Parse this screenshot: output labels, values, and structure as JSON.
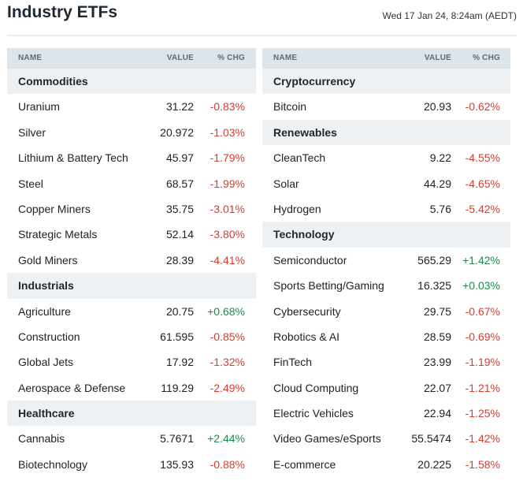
{
  "header": {
    "title": "Industry ETFs",
    "date": "Wed 17 Jan 24, 8:24am (AEDT)"
  },
  "columns": {
    "name": "NAME",
    "value": "VALUE",
    "chg": "% CHG"
  },
  "left": [
    {
      "section": "Commodities"
    },
    {
      "name": "Uranium",
      "value": "31.22",
      "chg": "-0.83%"
    },
    {
      "name": "Silver",
      "value": "20.972",
      "chg": "-1.03%"
    },
    {
      "name": "Lithium & Battery Tech",
      "value": "45.97",
      "chg": "-1.79%"
    },
    {
      "name": "Steel",
      "value": "68.57",
      "chg": "-1.99%"
    },
    {
      "name": "Copper Miners",
      "value": "35.75",
      "chg": "-3.01%"
    },
    {
      "name": "Strategic Metals",
      "value": "52.14",
      "chg": "-3.80%"
    },
    {
      "name": "Gold Miners",
      "value": "28.39",
      "chg": "-4.41%"
    },
    {
      "section": "Industrials"
    },
    {
      "name": "Agriculture",
      "value": "20.75",
      "chg": "+0.68%"
    },
    {
      "name": "Construction",
      "value": "61.595",
      "chg": "-0.85%"
    },
    {
      "name": "Global Jets",
      "value": "17.92",
      "chg": "-1.32%"
    },
    {
      "name": "Aerospace & Defense",
      "value": "119.29",
      "chg": "-2.49%"
    },
    {
      "section": "Healthcare"
    },
    {
      "name": "Cannabis",
      "value": "5.7671",
      "chg": "+2.44%"
    },
    {
      "name": "Biotechnology",
      "value": "135.93",
      "chg": "-0.88%"
    }
  ],
  "right": [
    {
      "section": "Cryptocurrency"
    },
    {
      "name": "Bitcoin",
      "value": "20.93",
      "chg": "-0.62%"
    },
    {
      "section": "Renewables"
    },
    {
      "name": "CleanTech",
      "value": "9.22",
      "chg": "-4.55%"
    },
    {
      "name": "Solar",
      "value": "44.29",
      "chg": "-4.65%"
    },
    {
      "name": "Hydrogen",
      "value": "5.76",
      "chg": "-5.42%"
    },
    {
      "section": "Technology"
    },
    {
      "name": "Semiconductor",
      "value": "565.29",
      "chg": "+1.42%"
    },
    {
      "name": "Sports Betting/Gaming",
      "value": "16.325",
      "chg": "+0.03%"
    },
    {
      "name": "Cybersecurity",
      "value": "29.75",
      "chg": "-0.67%"
    },
    {
      "name": "Robotics & AI",
      "value": "28.59",
      "chg": "-0.69%"
    },
    {
      "name": "FinTech",
      "value": "23.99",
      "chg": "-1.19%"
    },
    {
      "name": "Cloud Computing",
      "value": "22.07",
      "chg": "-1.21%"
    },
    {
      "name": "Electric Vehicles",
      "value": "22.94",
      "chg": "-1.25%"
    },
    {
      "name": "Video Games/eSports",
      "value": "55.5474",
      "chg": "-1.42%"
    },
    {
      "name": "E-commerce",
      "value": "20.225",
      "chg": "-1.58%"
    }
  ],
  "colors": {
    "negative": "#d23f31",
    "positive": "#1f8a4c",
    "header_bg": "#dde4ea",
    "section_bg": "#edf1f4"
  }
}
